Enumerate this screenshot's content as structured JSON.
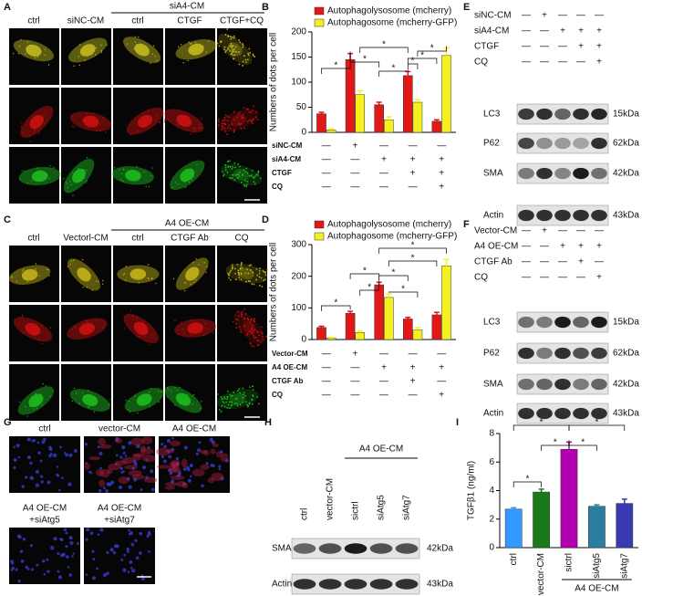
{
  "panels": {
    "A": {
      "label": "A",
      "group": "siA4-CM",
      "columns": [
        "ctrl",
        "siNC-CM",
        "ctrl",
        "CTGF",
        "CTGF+CQ"
      ]
    },
    "C": {
      "label": "C",
      "group": "A4 OE-CM",
      "columns": [
        "ctrl",
        "Vectorl-CM",
        "ctrl",
        "CTGF Ab",
        "CQ"
      ]
    },
    "E": {
      "label": "E",
      "conditions": [
        {
          "name": "siNC-CM",
          "signs": [
            "—",
            "+",
            "—",
            "—",
            "—"
          ]
        },
        {
          "name": "siA4-CM",
          "signs": [
            "—",
            "—",
            "+",
            "+",
            "+"
          ]
        },
        {
          "name": "CTGF",
          "signs": [
            "—",
            "—",
            "—",
            "+",
            "+"
          ]
        },
        {
          "name": "CQ",
          "signs": [
            "—",
            "—",
            "—",
            "—",
            "+"
          ]
        }
      ],
      "blots": [
        {
          "name": "LC3",
          "size": "15kDa"
        },
        {
          "name": "P62",
          "size": "62kDa"
        },
        {
          "name": "SMA",
          "size": "42kDa"
        },
        {
          "name": "Actin",
          "size": "43kDa"
        }
      ]
    },
    "F": {
      "label": "F",
      "conditions": [
        {
          "name": "Vector-CM",
          "signs": [
            "—",
            "+",
            "—",
            "—",
            "—"
          ]
        },
        {
          "name": "A4 OE-CM",
          "signs": [
            "—",
            "—",
            "+",
            "+",
            "+"
          ]
        },
        {
          "name": "CTGF Ab",
          "signs": [
            "—",
            "—",
            "—",
            "+",
            "—"
          ]
        },
        {
          "name": "CQ",
          "signs": [
            "—",
            "—",
            "—",
            "—",
            "+"
          ]
        }
      ],
      "blots": [
        {
          "name": "LC3",
          "size": "15kDa"
        },
        {
          "name": "P62",
          "size": "62kDa"
        },
        {
          "name": "SMA",
          "size": "42kDa"
        },
        {
          "name": "Actin",
          "size": "43kDa"
        }
      ]
    },
    "G": {
      "label": "G",
      "images": [
        [
          "ctrl"
        ],
        [
          "vector-CM"
        ],
        [
          "A4 OE-CM"
        ],
        [
          "A4 OE-CM",
          "+siAtg5"
        ],
        [
          "A4 OE-CM",
          "+siAtg7"
        ]
      ]
    },
    "H": {
      "label": "H",
      "group": "A4 OE-CM",
      "lanes": [
        "ctrl",
        "vector-CM",
        "sictrl",
        "siAtg5",
        "siAtg7"
      ],
      "blots": [
        {
          "name": "SMA",
          "size": "42kDa"
        },
        {
          "name": "Actin",
          "size": "43kDa"
        }
      ]
    }
  },
  "chart_data": [
    {
      "panel": "B",
      "type": "bar",
      "ylabel": "Numbers of dots per cell",
      "ylim": [
        0,
        200
      ],
      "yticks": [
        0,
        50,
        100,
        150,
        200
      ],
      "series": [
        {
          "name": "Autophagolysosome (mcherry)",
          "color": "#e01818",
          "values": [
            37,
            145,
            55,
            113,
            22
          ],
          "errors": [
            3,
            12,
            5,
            8,
            3
          ]
        },
        {
          "name": "Autophagosome (mcherry-GFP)",
          "color": "#f5f020",
          "values": [
            5,
            75,
            25,
            60,
            153
          ],
          "errors": [
            2,
            8,
            6,
            5,
            15
          ]
        }
      ],
      "conditions": [
        {
          "name": "siNC-CM",
          "signs": [
            "—",
            "+",
            "—",
            "—",
            "—"
          ]
        },
        {
          "name": "siA4-CM",
          "signs": [
            "—",
            "—",
            "+",
            "+",
            "+"
          ]
        },
        {
          "name": "CTGF",
          "signs": [
            "—",
            "—",
            "—",
            "+",
            "+"
          ]
        },
        {
          "name": "CQ",
          "signs": [
            "—",
            "—",
            "—",
            "—",
            "+"
          ]
        }
      ],
      "significance": "*"
    },
    {
      "panel": "D",
      "type": "bar",
      "ylabel": "Numbers of dots per cell",
      "ylim": [
        0,
        300
      ],
      "yticks": [
        0,
        100,
        200,
        300
      ],
      "series": [
        {
          "name": "Autophagolysosome (mcherry)",
          "color": "#e01818",
          "values": [
            38,
            83,
            173,
            65,
            78
          ],
          "errors": [
            4,
            6,
            8,
            5,
            8
          ]
        },
        {
          "name": "Autophagosome (mcherry-GFP)",
          "color": "#f5f020",
          "values": [
            5,
            22,
            133,
            30,
            233
          ],
          "errors": [
            2,
            4,
            12,
            8,
            20
          ]
        }
      ],
      "conditions": [
        {
          "name": "Vector-CM",
          "signs": [
            "—",
            "+",
            "—",
            "—",
            "—"
          ]
        },
        {
          "name": "A4 OE-CM",
          "signs": [
            "—",
            "—",
            "+",
            "+",
            "+"
          ]
        },
        {
          "name": "CTGF Ab",
          "signs": [
            "—",
            "—",
            "—",
            "+",
            "—"
          ]
        },
        {
          "name": "CQ",
          "signs": [
            "—",
            "—",
            "—",
            "—",
            "+"
          ]
        }
      ],
      "significance": "*"
    },
    {
      "panel": "I",
      "type": "bar",
      "ylabel": "TGFβ1 (ng/ml)",
      "ylim": [
        0,
        8
      ],
      "yticks": [
        0,
        2,
        4,
        6,
        8
      ],
      "categories": [
        "ctrl",
        "vector-CM",
        "sictrl",
        "siAtg5",
        "siAtg7"
      ],
      "values": [
        2.7,
        3.9,
        6.9,
        2.9,
        3.1
      ],
      "errors": [
        0.1,
        0.2,
        0.5,
        0.1,
        0.3
      ],
      "colors": [
        "#3399ff",
        "#1a7a1a",
        "#b000b0",
        "#2a7fa0",
        "#3a3ab0"
      ],
      "group": "A4 OE-CM",
      "significance": "*"
    }
  ]
}
